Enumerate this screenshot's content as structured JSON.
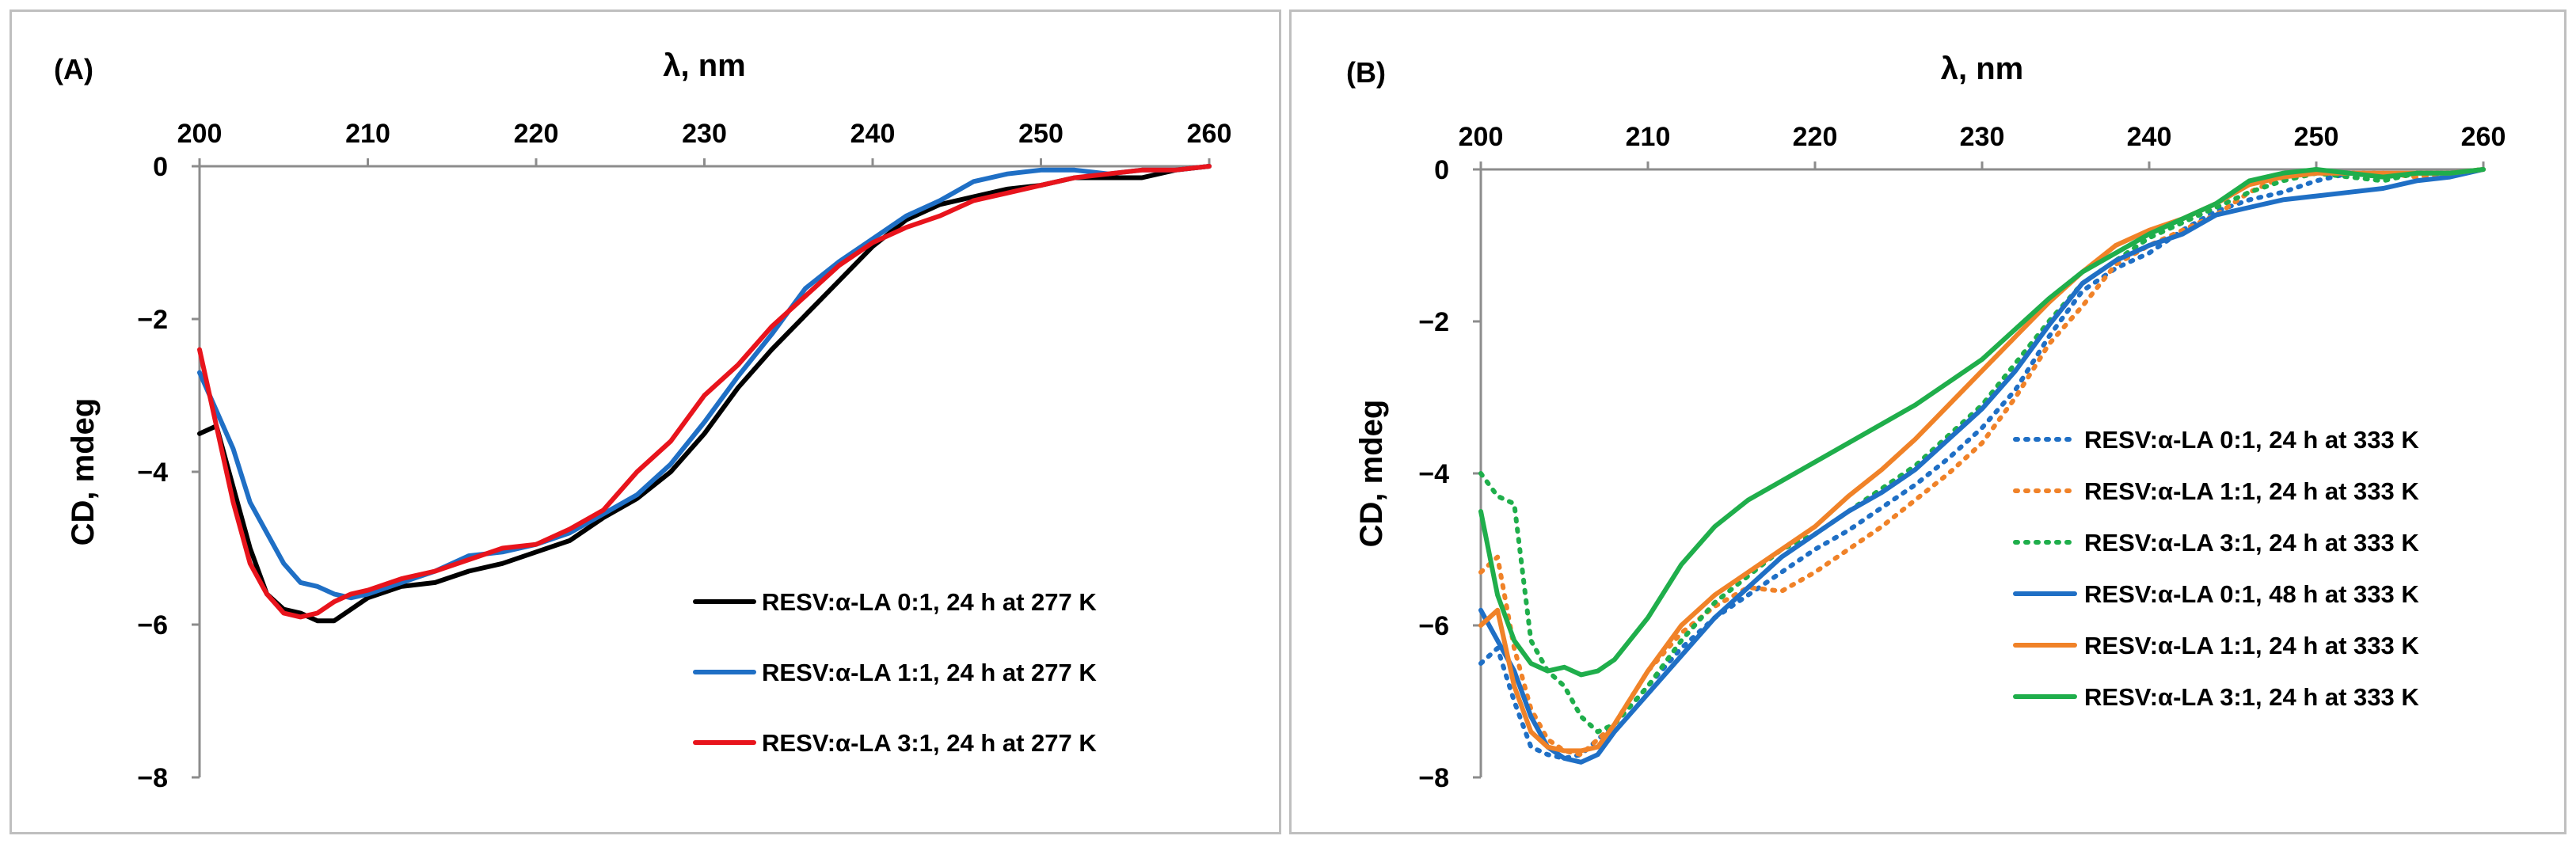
{
  "chart_data": [
    {
      "type": "line",
      "panel_label": "(A)",
      "xlabel": "λ, nm",
      "ylabel": "CD, mdeg",
      "xlim": [
        200,
        260
      ],
      "ylim": [
        -8,
        0
      ],
      "x_ticks": [
        "200",
        "210",
        "220",
        "230",
        "240",
        "250",
        "260"
      ],
      "y_ticks": [
        "0",
        "−2",
        "−4",
        "−6",
        "−8"
      ],
      "legend_position": "bottom-right",
      "series": [
        {
          "name": "RESV:α-LA 0:1, 24 h at 277 K",
          "color": "#000000",
          "dash": "solid",
          "x": [
            200,
            201,
            202,
            203,
            204,
            205,
            206,
            207,
            208,
            209,
            210,
            212,
            214,
            216,
            218,
            220,
            222,
            224,
            226,
            228,
            230,
            232,
            234,
            236,
            238,
            240,
            242,
            244,
            246,
            248,
            250,
            252,
            254,
            256,
            258,
            260
          ],
          "y": [
            -3.5,
            -3.4,
            -4.2,
            -5.0,
            -5.6,
            -5.8,
            -5.85,
            -5.95,
            -5.95,
            -5.8,
            -5.65,
            -5.5,
            -5.45,
            -5.3,
            -5.2,
            -5.05,
            -4.9,
            -4.6,
            -4.35,
            -4.0,
            -3.5,
            -2.9,
            -2.4,
            -1.95,
            -1.5,
            -1.05,
            -0.7,
            -0.5,
            -0.4,
            -0.3,
            -0.25,
            -0.15,
            -0.15,
            -0.15,
            -0.05,
            0
          ]
        },
        {
          "name": "RESV:α-LA 1:1, 24 h at 277 K",
          "color": "#1f6fc5",
          "dash": "solid",
          "x": [
            200,
            201,
            202,
            203,
            204,
            205,
            206,
            207,
            208,
            209,
            210,
            212,
            214,
            216,
            218,
            220,
            222,
            224,
            226,
            228,
            230,
            232,
            234,
            236,
            238,
            240,
            242,
            244,
            246,
            248,
            250,
            252,
            254,
            256,
            258,
            260
          ],
          "y": [
            -2.7,
            -3.2,
            -3.7,
            -4.4,
            -4.8,
            -5.2,
            -5.45,
            -5.5,
            -5.6,
            -5.65,
            -5.6,
            -5.45,
            -5.3,
            -5.1,
            -5.05,
            -4.95,
            -4.8,
            -4.55,
            -4.3,
            -3.9,
            -3.35,
            -2.75,
            -2.2,
            -1.6,
            -1.25,
            -0.95,
            -0.65,
            -0.45,
            -0.2,
            -0.1,
            -0.05,
            -0.05,
            -0.1,
            -0.05,
            -0.05,
            0
          ]
        },
        {
          "name": "RESV:α-LA 3:1, 24 h at 277 K",
          "color": "#e8141c",
          "dash": "solid",
          "x": [
            200,
            201,
            202,
            203,
            204,
            205,
            206,
            207,
            208,
            209,
            210,
            212,
            214,
            216,
            218,
            220,
            222,
            224,
            226,
            228,
            230,
            232,
            234,
            236,
            238,
            240,
            242,
            244,
            246,
            248,
            250,
            252,
            254,
            256,
            258,
            260
          ],
          "y": [
            -2.4,
            -3.4,
            -4.4,
            -5.2,
            -5.6,
            -5.85,
            -5.9,
            -5.85,
            -5.7,
            -5.6,
            -5.55,
            -5.4,
            -5.3,
            -5.15,
            -5.0,
            -4.95,
            -4.75,
            -4.5,
            -4.0,
            -3.6,
            -3.0,
            -2.6,
            -2.1,
            -1.7,
            -1.3,
            -1.0,
            -0.8,
            -0.65,
            -0.45,
            -0.35,
            -0.25,
            -0.15,
            -0.1,
            -0.05,
            -0.05,
            0
          ]
        }
      ]
    },
    {
      "type": "line",
      "panel_label": "(B)",
      "xlabel": "λ, nm",
      "ylabel": "CD, mdeg",
      "xlim": [
        200,
        260
      ],
      "ylim": [
        -8,
        0
      ],
      "x_ticks": [
        "200",
        "210",
        "220",
        "230",
        "240",
        "250",
        "260"
      ],
      "y_ticks": [
        "0",
        "−2",
        "−4",
        "−6",
        "−8"
      ],
      "legend_position": "bottom-right",
      "series": [
        {
          "name": "RESV:α-LA 0:1, 24 h at 333 K",
          "color": "#1f6fc5",
          "dash": "dotted",
          "x": [
            200,
            201,
            202,
            203,
            204,
            205,
            206,
            207,
            208,
            210,
            212,
            214,
            216,
            218,
            220,
            222,
            224,
            226,
            228,
            230,
            232,
            234,
            236,
            238,
            240,
            242,
            244,
            246,
            248,
            250,
            252,
            254,
            256,
            258,
            260
          ],
          "y": [
            -6.5,
            -6.3,
            -7.0,
            -7.6,
            -7.7,
            -7.75,
            -7.7,
            -7.5,
            -7.3,
            -6.8,
            -6.3,
            -5.9,
            -5.6,
            -5.3,
            -5.0,
            -4.75,
            -4.45,
            -4.15,
            -3.8,
            -3.4,
            -2.9,
            -2.2,
            -1.6,
            -1.3,
            -1.1,
            -0.8,
            -0.55,
            -0.4,
            -0.3,
            -0.15,
            -0.05,
            -0.1,
            -0.05,
            -0.05,
            0
          ]
        },
        {
          "name": "RESV:α-LA 1:1, 24 h at 333 K",
          "color": "#f08228",
          "dash": "dotted",
          "x": [
            200,
            201,
            202,
            203,
            204,
            205,
            206,
            207,
            208,
            210,
            212,
            214,
            216,
            218,
            220,
            222,
            224,
            226,
            228,
            230,
            232,
            234,
            236,
            238,
            240,
            242,
            244,
            246,
            248,
            250,
            252,
            254,
            256,
            258,
            260
          ],
          "y": [
            -5.3,
            -5.1,
            -6.3,
            -7.1,
            -7.5,
            -7.65,
            -7.7,
            -7.5,
            -7.3,
            -6.6,
            -6.1,
            -5.75,
            -5.5,
            -5.55,
            -5.3,
            -5.0,
            -4.7,
            -4.35,
            -4.0,
            -3.6,
            -3.0,
            -2.3,
            -1.8,
            -1.25,
            -1.0,
            -0.8,
            -0.6,
            -0.3,
            -0.1,
            -0.05,
            -0.05,
            -0.05,
            -0.1,
            -0.05,
            0
          ]
        },
        {
          "name": "RESV:α-LA 3:1, 24 h at 333 K",
          "color": "#1fae4b",
          "dash": "dotted",
          "x": [
            200,
            201,
            202,
            203,
            204,
            205,
            206,
            207,
            208,
            210,
            212,
            214,
            216,
            218,
            220,
            222,
            224,
            226,
            228,
            230,
            232,
            234,
            236,
            238,
            240,
            242,
            244,
            246,
            248,
            250,
            252,
            254,
            256,
            258,
            260
          ],
          "y": [
            -4.0,
            -4.3,
            -4.4,
            -6.2,
            -6.6,
            -6.8,
            -7.2,
            -7.4,
            -7.3,
            -6.8,
            -6.2,
            -5.7,
            -5.35,
            -5.0,
            -4.8,
            -4.5,
            -4.2,
            -3.9,
            -3.5,
            -3.1,
            -2.55,
            -2.0,
            -1.5,
            -1.2,
            -0.9,
            -0.7,
            -0.5,
            -0.3,
            -0.15,
            -0.05,
            -0.1,
            -0.15,
            -0.05,
            -0.05,
            0
          ]
        },
        {
          "name": "RESV:α-LA 0:1, 48 h at 333 K",
          "color": "#1f6fc5",
          "dash": "solid",
          "x": [
            200,
            201,
            202,
            203,
            204,
            205,
            206,
            207,
            208,
            210,
            212,
            214,
            216,
            218,
            220,
            222,
            224,
            226,
            228,
            230,
            232,
            234,
            236,
            238,
            240,
            242,
            244,
            246,
            248,
            250,
            252,
            254,
            256,
            258,
            260
          ],
          "y": [
            -5.8,
            -6.2,
            -6.6,
            -7.2,
            -7.6,
            -7.75,
            -7.8,
            -7.7,
            -7.4,
            -6.9,
            -6.4,
            -5.9,
            -5.5,
            -5.1,
            -4.8,
            -4.5,
            -4.25,
            -3.95,
            -3.55,
            -3.15,
            -2.65,
            -2.05,
            -1.5,
            -1.2,
            -1.0,
            -0.85,
            -0.6,
            -0.5,
            -0.4,
            -0.35,
            -0.3,
            -0.25,
            -0.15,
            -0.1,
            0
          ]
        },
        {
          "name": "RESV:α-LA 1:1, 24 h at 333 K",
          "color": "#f08228",
          "dash": "solid",
          "x": [
            200,
            201,
            202,
            203,
            204,
            205,
            206,
            207,
            208,
            210,
            212,
            214,
            216,
            218,
            220,
            222,
            224,
            226,
            228,
            230,
            232,
            234,
            236,
            238,
            240,
            242,
            244,
            246,
            248,
            250,
            252,
            254,
            256,
            258,
            260
          ],
          "y": [
            -6.0,
            -5.8,
            -6.8,
            -7.4,
            -7.6,
            -7.65,
            -7.65,
            -7.6,
            -7.3,
            -6.6,
            -6.0,
            -5.6,
            -5.3,
            -5.0,
            -4.7,
            -4.3,
            -3.95,
            -3.55,
            -3.1,
            -2.65,
            -2.2,
            -1.75,
            -1.35,
            -1.0,
            -0.8,
            -0.65,
            -0.45,
            -0.2,
            -0.1,
            -0.05,
            -0.05,
            -0.05,
            -0.05,
            -0.05,
            0
          ]
        },
        {
          "name": "RESV:α-LA 3:1, 24 h at 333 K",
          "color": "#1fae4b",
          "dash": "solid",
          "x": [
            200,
            201,
            202,
            203,
            204,
            205,
            206,
            207,
            208,
            210,
            212,
            214,
            216,
            218,
            220,
            222,
            224,
            226,
            228,
            230,
            232,
            234,
            236,
            238,
            240,
            242,
            244,
            246,
            248,
            250,
            252,
            254,
            256,
            258,
            260
          ],
          "y": [
            -4.5,
            -5.6,
            -6.2,
            -6.5,
            -6.6,
            -6.55,
            -6.65,
            -6.6,
            -6.45,
            -5.9,
            -5.2,
            -4.7,
            -4.35,
            -4.1,
            -3.85,
            -3.6,
            -3.35,
            -3.1,
            -2.8,
            -2.5,
            -2.1,
            -1.7,
            -1.35,
            -1.1,
            -0.85,
            -0.65,
            -0.45,
            -0.15,
            -0.05,
            0.0,
            -0.05,
            -0.1,
            -0.05,
            -0.05,
            0
          ]
        }
      ]
    }
  ]
}
